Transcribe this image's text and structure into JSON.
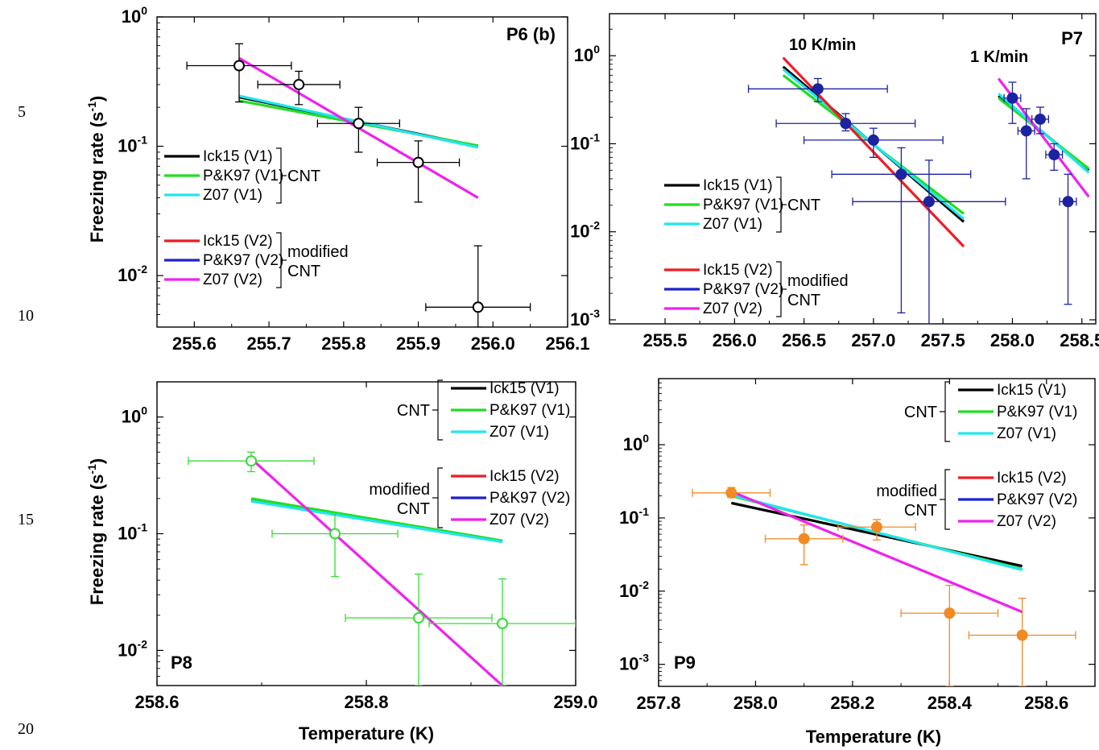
{
  "line_numbers": [
    "5",
    "10",
    "15",
    "20"
  ],
  "legend_groups": {
    "cnt": "CNT",
    "modified_line1": "modified",
    "modified_line2": "CNT"
  },
  "series_styles": [
    {
      "name": "Ick15 (V1)",
      "color": "#000000"
    },
    {
      "name": "P&K97 (V1)",
      "color": "#22dd22"
    },
    {
      "name": "Z07 (V1)",
      "color": "#22e5ef"
    },
    {
      "name": "Ick15 (V2)",
      "color": "#ee1c24"
    },
    {
      "name": "P&K97 (V2)",
      "color": "#1c22cc"
    },
    {
      "name": "Z07 (V2)",
      "color": "#ee22ee"
    }
  ],
  "chart_data": [
    {
      "id": "p6",
      "type": "scatter",
      "panel_label": "P6 (b)",
      "xlabel": "",
      "ylabel": "Freezing rate (s-1)",
      "ylabel_main": "Freezing rate (s",
      "ylabel_sup": "-1",
      "ylabel_close": ")",
      "log_y": true,
      "xlim": [
        255.55,
        256.1
      ],
      "ylim": [
        0.004,
        1.0
      ],
      "x_ticks": [
        255.6,
        255.7,
        255.8,
        255.9,
        256.0,
        256.1
      ],
      "x_tick_labels": [
        "255.6",
        "255.7",
        "255.8",
        "255.9",
        "256.0",
        "256.1"
      ],
      "y_ticks": [
        0.01,
        0.1,
        1
      ],
      "marker_color": "#000000",
      "marker": "open-circle",
      "points": [
        {
          "x": 255.66,
          "y": 0.42,
          "xerr": 0.07,
          "ylo": 0.22,
          "yhi": 0.62
        },
        {
          "x": 255.74,
          "y": 0.3,
          "xerr": 0.055,
          "ylo": 0.21,
          "yhi": 0.38
        },
        {
          "x": 255.82,
          "y": 0.15,
          "xerr": 0.055,
          "ylo": 0.09,
          "yhi": 0.2
        },
        {
          "x": 255.9,
          "y": 0.075,
          "xerr": 0.055,
          "ylo": 0.037,
          "yhi": 0.11
        },
        {
          "x": 255.98,
          "y": 0.0057,
          "xerr": 0.07,
          "ylo": 0.004,
          "yhi": 0.017
        }
      ],
      "lines": [
        {
          "style": 0,
          "x": [
            255.66,
            255.98
          ],
          "y": [
            0.24,
            0.1
          ]
        },
        {
          "style": 1,
          "x": [
            255.66,
            255.98
          ],
          "y": [
            0.225,
            0.101
          ]
        },
        {
          "style": 2,
          "x": [
            255.66,
            255.98
          ],
          "y": [
            0.245,
            0.098
          ]
        },
        {
          "style": 5,
          "x": [
            255.66,
            255.98
          ],
          "y": [
            0.48,
            0.04
          ]
        }
      ],
      "annotations": []
    },
    {
      "id": "p7",
      "type": "scatter",
      "panel_label": "P7",
      "xlabel": "",
      "ylabel": "",
      "log_y": true,
      "xlim": [
        255.1,
        258.6
      ],
      "ylim": [
        0.0009,
        3.0
      ],
      "x_ticks": [
        255.5,
        256.0,
        256.5,
        257.0,
        257.5,
        258.0,
        258.5
      ],
      "x_tick_labels": [
        "255.5",
        "256.0",
        "256.5",
        "257.0",
        "257.5",
        "258.0",
        "258.5"
      ],
      "y_ticks": [
        0.001,
        0.01,
        0.1,
        1
      ],
      "marker_color": "#1c22a0",
      "marker": "filled-circle",
      "points": [
        {
          "x": 256.6,
          "y": 0.42,
          "xerr": 0.5,
          "ylo": 0.3,
          "yhi": 0.55
        },
        {
          "x": 256.8,
          "y": 0.17,
          "xerr": 0.5,
          "ylo": 0.14,
          "yhi": 0.22
        },
        {
          "x": 257.0,
          "y": 0.11,
          "xerr": 0.5,
          "ylo": 0.07,
          "yhi": 0.15
        },
        {
          "x": 257.2,
          "y": 0.045,
          "xerr": 0.5,
          "ylo": 0.0012,
          "yhi": 0.09
        },
        {
          "x": 257.4,
          "y": 0.022,
          "xerr": 0.55,
          "ylo": 0.0009,
          "yhi": 0.065
        },
        {
          "x": 258.0,
          "y": 0.33,
          "xerr": 0.06,
          "ylo": 0.17,
          "yhi": 0.5
        },
        {
          "x": 258.1,
          "y": 0.14,
          "xerr": 0.06,
          "ylo": 0.04,
          "yhi": 0.25
        },
        {
          "x": 258.2,
          "y": 0.19,
          "xerr": 0.06,
          "ylo": 0.13,
          "yhi": 0.26
        },
        {
          "x": 258.3,
          "y": 0.075,
          "xerr": 0.06,
          "ylo": 0.05,
          "yhi": 0.1
        },
        {
          "x": 258.4,
          "y": 0.022,
          "xerr": 0.06,
          "ylo": 0.0015,
          "yhi": 0.045
        }
      ],
      "lines": [
        {
          "style": 0,
          "x": [
            256.35,
            257.65
          ],
          "y": [
            0.75,
            0.013
          ]
        },
        {
          "style": 1,
          "x": [
            256.35,
            257.65
          ],
          "y": [
            0.6,
            0.016
          ]
        },
        {
          "style": 2,
          "x": [
            256.35,
            257.65
          ],
          "y": [
            0.7,
            0.014
          ]
        },
        {
          "style": 3,
          "x": [
            256.35,
            257.65
          ],
          "y": [
            0.95,
            0.0068
          ]
        },
        {
          "style": 0,
          "x": [
            257.9,
            258.55
          ],
          "y": [
            0.35,
            0.05
          ]
        },
        {
          "style": 1,
          "x": [
            257.9,
            258.55
          ],
          "y": [
            0.33,
            0.052
          ]
        },
        {
          "style": 2,
          "x": [
            257.9,
            258.55
          ],
          "y": [
            0.37,
            0.047
          ]
        },
        {
          "style": 5,
          "x": [
            257.9,
            258.55
          ],
          "y": [
            0.55,
            0.025
          ]
        }
      ],
      "annotations": [
        "10 K/min",
        "1 K/min"
      ]
    },
    {
      "id": "p8",
      "type": "scatter",
      "panel_label": "P8",
      "xlabel": "Temperature (K)",
      "ylabel": "Freezing rate (s-1)",
      "ylabel_main": "Freezing rate (s",
      "ylabel_sup": "-1",
      "ylabel_close": ")",
      "log_y": true,
      "xlim": [
        258.6,
        259.0
      ],
      "ylim": [
        0.005,
        2.0
      ],
      "x_ticks": [
        258.6,
        258.8,
        259.0
      ],
      "x_tick_labels": [
        "258.6",
        "258.8",
        "259.0"
      ],
      "y_ticks": [
        0.01,
        0.1,
        1
      ],
      "marker_color": "#33dd33",
      "marker": "open-circle",
      "points": [
        {
          "x": 258.69,
          "y": 0.42,
          "xerr": 0.06,
          "ylo": 0.34,
          "yhi": 0.5
        },
        {
          "x": 258.77,
          "y": 0.1,
          "xerr": 0.06,
          "ylo": 0.043,
          "yhi": 0.15
        },
        {
          "x": 258.85,
          "y": 0.019,
          "xerr": 0.07,
          "ylo": 0.005,
          "yhi": 0.045
        },
        {
          "x": 258.93,
          "y": 0.017,
          "xerr": 0.07,
          "ylo": 0.005,
          "yhi": 0.041
        }
      ],
      "lines": [
        {
          "style": 0,
          "x": [
            258.69,
            258.93
          ],
          "y": [
            0.195,
            0.086
          ]
        },
        {
          "style": 1,
          "x": [
            258.69,
            258.93
          ],
          "y": [
            0.2,
            0.087
          ]
        },
        {
          "style": 2,
          "x": [
            258.69,
            258.93
          ],
          "y": [
            0.19,
            0.085
          ]
        },
        {
          "style": 5,
          "x": [
            258.69,
            258.93
          ],
          "y": [
            0.44,
            0.005
          ]
        }
      ],
      "annotations": []
    },
    {
      "id": "p9",
      "type": "scatter",
      "panel_label": "P9",
      "xlabel": "Temperature (K)",
      "ylabel": "",
      "log_y": true,
      "xlim": [
        257.8,
        258.7
      ],
      "ylim": [
        0.0005,
        8.0
      ],
      "x_ticks": [
        257.8,
        258.0,
        258.2,
        258.4,
        258.6
      ],
      "x_tick_labels": [
        "257.8",
        "258.0",
        "258.2",
        "258.4",
        "258.6"
      ],
      "y_ticks": [
        0.001,
        0.01,
        0.1,
        1
      ],
      "marker_color": "#f08a24",
      "marker": "filled-circle",
      "points": [
        {
          "x": 257.95,
          "y": 0.22,
          "xerr": 0.08,
          "ylo": 0.19,
          "yhi": 0.26
        },
        {
          "x": 258.1,
          "y": 0.052,
          "xerr": 0.08,
          "ylo": 0.023,
          "yhi": 0.08
        },
        {
          "x": 258.25,
          "y": 0.075,
          "xerr": 0.08,
          "ylo": 0.05,
          "yhi": 0.095
        },
        {
          "x": 258.4,
          "y": 0.005,
          "xerr": 0.1,
          "ylo": 0.0005,
          "yhi": 0.012
        },
        {
          "x": 258.55,
          "y": 0.0025,
          "xerr": 0.11,
          "ylo": 0.0005,
          "yhi": 0.008
        }
      ],
      "lines": [
        {
          "style": 0,
          "x": [
            257.95,
            258.55
          ],
          "y": [
            0.16,
            0.022
          ]
        },
        {
          "style": 1,
          "x": [
            257.95,
            258.55
          ],
          "y": [
            0.2,
            0.02
          ]
        },
        {
          "style": 2,
          "x": [
            257.95,
            258.55
          ],
          "y": [
            0.205,
            0.0195
          ]
        },
        {
          "style": 5,
          "x": [
            257.95,
            258.55
          ],
          "y": [
            0.23,
            0.0052
          ]
        }
      ],
      "annotations": []
    }
  ]
}
